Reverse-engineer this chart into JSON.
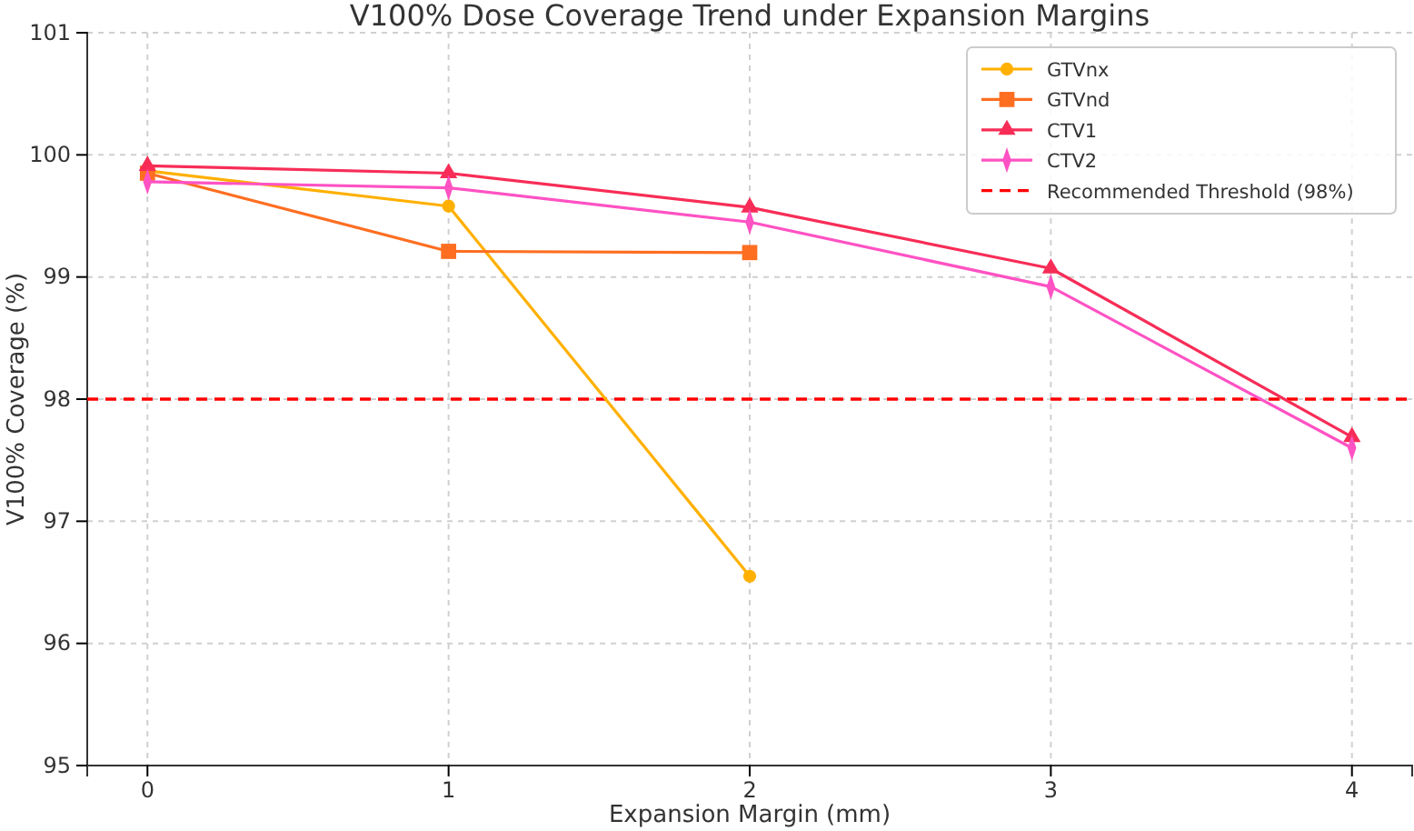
{
  "chart_data": {
    "type": "line",
    "title": "V100% Dose Coverage Trend under Expansion Margins",
    "xlabel": "Expansion Margin (mm)",
    "ylabel": "V100% Coverage (%)",
    "x": [
      0,
      1,
      2,
      3,
      4
    ],
    "xlim": [
      -0.2,
      4.2
    ],
    "xticks": [
      0,
      1,
      2,
      3,
      4
    ],
    "ylim": [
      95,
      101
    ],
    "yticks": [
      95,
      96,
      97,
      98,
      99,
      100,
      101
    ],
    "grid": true,
    "legend": "top right",
    "line_style": "solid",
    "series": [
      {
        "name": "GTVnx",
        "color": "#ffb000",
        "marker": "circle",
        "x": [
          0,
          1,
          2
        ],
        "values": [
          99.87,
          99.58,
          96.55
        ]
      },
      {
        "name": "GTVnd",
        "color": "#fe6e21",
        "marker": "square",
        "x": [
          0,
          1,
          2
        ],
        "values": [
          99.85,
          99.21,
          99.2
        ]
      },
      {
        "name": "CTV1",
        "color": "#f72d57",
        "marker": "triangle",
        "values": [
          99.91,
          99.85,
          99.57,
          99.07,
          97.69
        ]
      },
      {
        "name": "CTV2",
        "color": "#ff52c3",
        "marker": "diamond",
        "values": [
          99.78,
          99.73,
          99.45,
          98.92,
          97.6
        ]
      }
    ],
    "ref_lines": [
      {
        "axis": "y",
        "value": 98,
        "label": "Recommended Threshold (98%)",
        "color": "#ff0000",
        "line_style": "dashed"
      }
    ]
  }
}
